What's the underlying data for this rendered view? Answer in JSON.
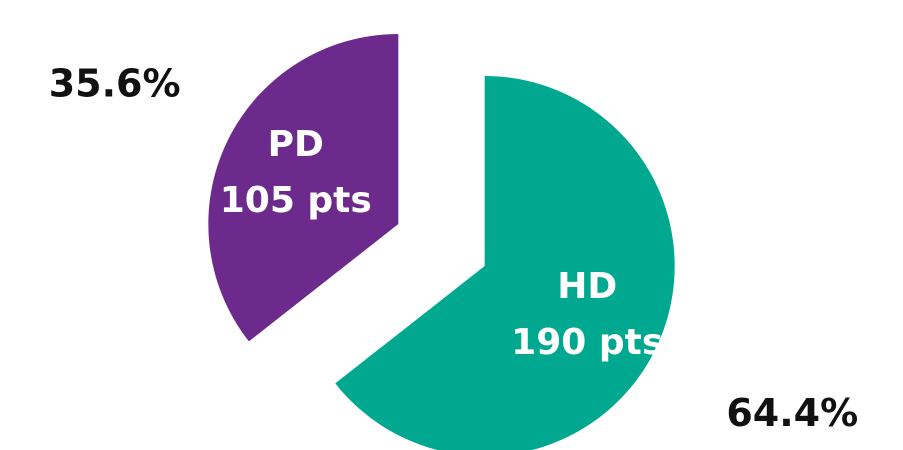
{
  "chart_data": {
    "type": "pie",
    "categories": [
      "PD",
      "HD"
    ],
    "count_labels": [
      "105 pts",
      "190 pts"
    ],
    "values": [
      35.6,
      64.4
    ],
    "value_labels": [
      "35.6%",
      "64.4%"
    ],
    "colors": [
      "#6b2a8c",
      "#00a88f"
    ]
  }
}
